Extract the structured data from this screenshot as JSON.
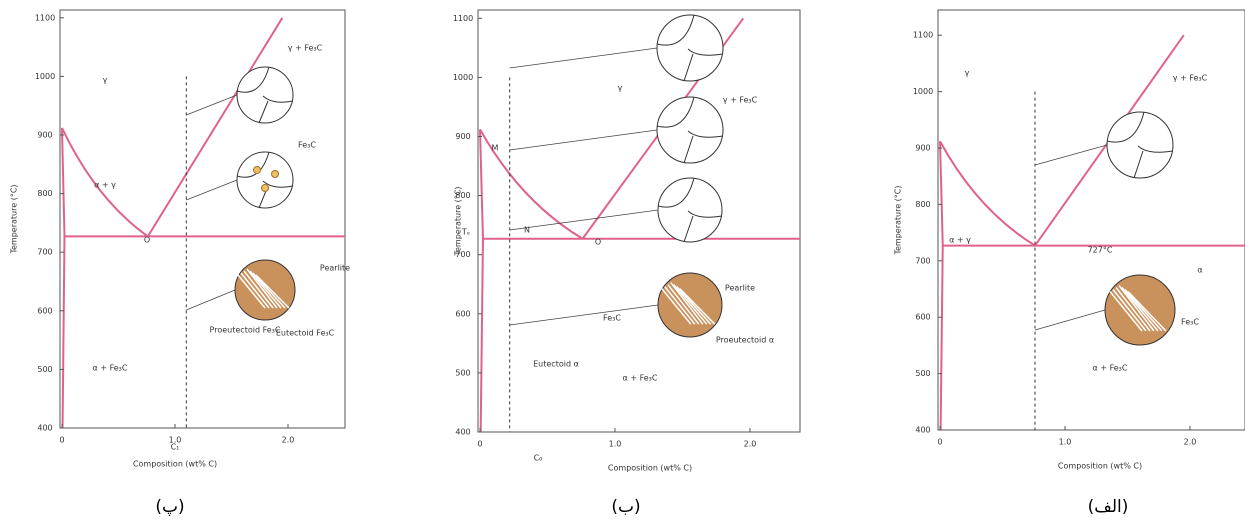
{
  "panels": [
    {
      "caption": "(پ)",
      "y_axis_label": "Temperature (°C)",
      "x_axis_label": "Composition (wt% C)",
      "yticks": [
        "400",
        "500",
        "600",
        "700",
        "800",
        "900",
        "1000",
        "1100"
      ],
      "xticks": [
        "0",
        "1.0",
        "2.0"
      ],
      "labels": [
        "γ",
        "γ + Fe₃C",
        "α + γ",
        "α + Fe₃C",
        "Fe₃C",
        "Pearlite",
        "Proeutectoid Fe₃C",
        "Eutectoid Fe₃C",
        "O",
        "C₁"
      ]
    },
    {
      "caption": "(ب)",
      "y_axis_label": "Temperature (°C)",
      "x_axis_label": "Composition (wt% C)",
      "yticks": [
        "400",
        "500",
        "600",
        "700",
        "800",
        "900",
        "1000",
        "1100"
      ],
      "xticks": [
        "0",
        "1.0",
        "2.0"
      ],
      "labels": [
        "γ",
        "γ + Fe₃C",
        "α + Fe₃C",
        "M",
        "N",
        "O",
        "Tₑ",
        "C₀",
        "Pearlite",
        "Fe₃C",
        "Eutectoid α",
        "Proeutectoid α"
      ]
    },
    {
      "caption": "(الف)",
      "y_axis_label": "Temperature (°C)",
      "x_axis_label": "Composition (wt% C)",
      "yticks": [
        "400",
        "500",
        "600",
        "700",
        "800",
        "900",
        "1000",
        "1100"
      ],
      "xticks": [
        "0",
        "1.0",
        "2.0"
      ],
      "labels": [
        "γ",
        "γ + Fe₃C",
        "α + γ",
        "727°C",
        "α + Fe₃C",
        "Fe₃C",
        "α"
      ]
    }
  ]
}
